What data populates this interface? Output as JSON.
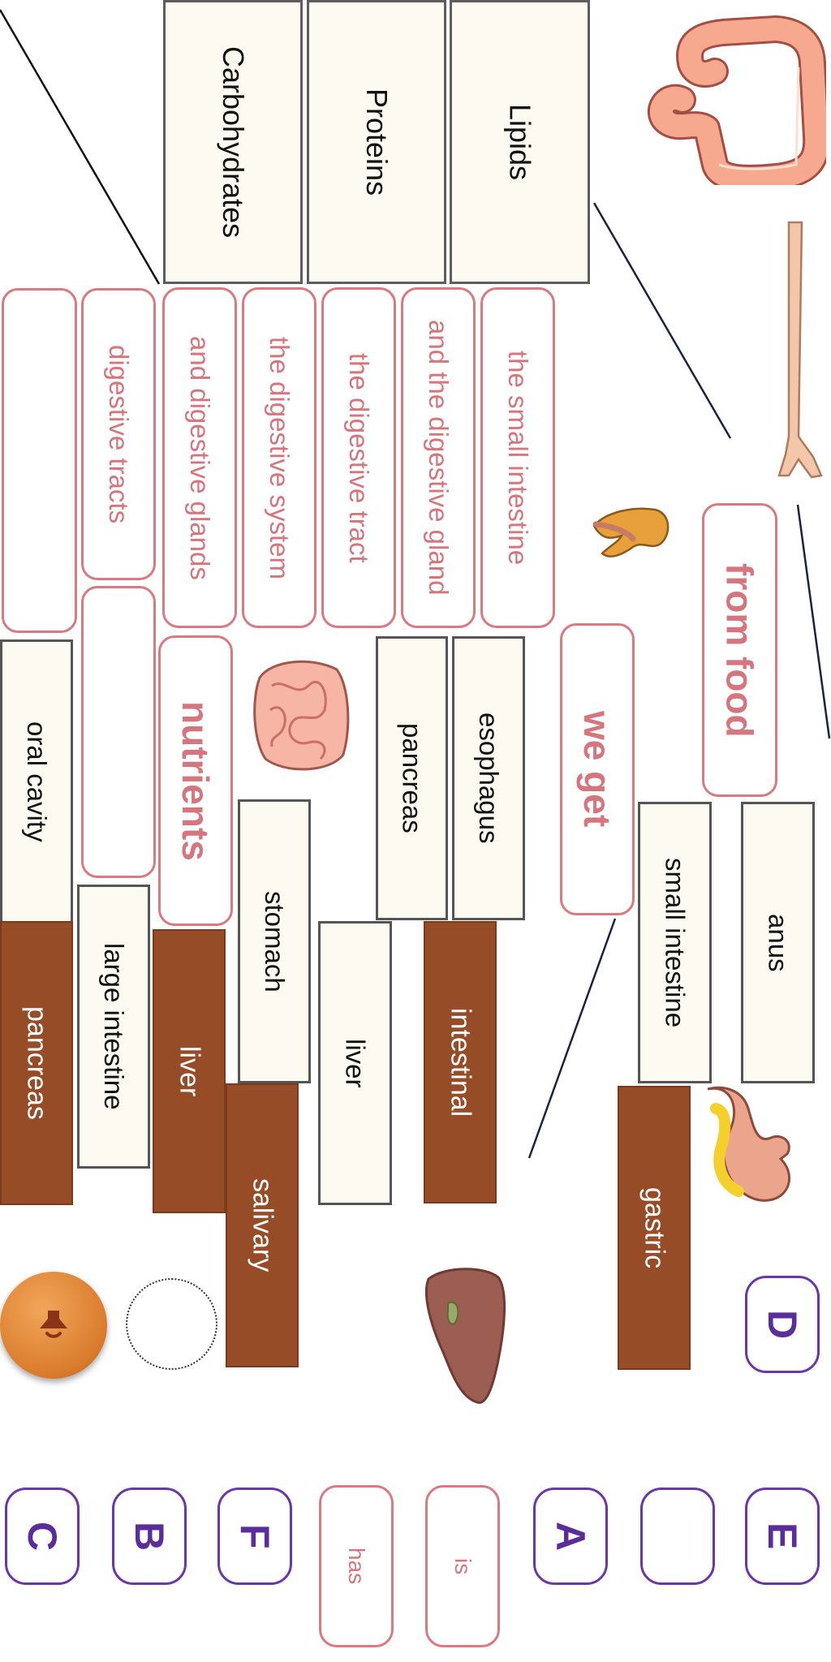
{
  "categories": {
    "carbohydrates": "Carbohydrates",
    "proteins": "Proteins",
    "lipids": "Lipids"
  },
  "phrases": {
    "digestive_tracts": "digestive tracts",
    "and_digestive_glands": "and digestive glands",
    "the_digestive_system": "the digestive system",
    "the_digestive_tract": "the digestive tract",
    "and_the_digestive_gland": "and the digestive gland",
    "the_small_intestine": "the small intestine",
    "from_food": "from food",
    "we_get": "we get",
    "nutrients": "nutrients",
    "has": "has",
    "is": "is"
  },
  "organ_labels": {
    "oral_cavity": "oral cavity",
    "pancreas": "pancreas",
    "esophagus": "esophagus",
    "small_intestine": "small intestine",
    "anus": "anus",
    "stomach": "stomach",
    "liver": "liver",
    "large_intestine": "large intestine"
  },
  "gland_labels": {
    "pancreas": "pancreas",
    "liver": "liver",
    "salivary": "salivary",
    "intestinal": "intestinal",
    "gastric": "gastric"
  },
  "letters": {
    "d": "D",
    "e": "E",
    "a": "A",
    "f": "F",
    "b": "B",
    "c": "C"
  },
  "icons": {
    "sound": "speaker-icon"
  },
  "colors": {
    "phrase_text": "#d5757d",
    "letter_text": "#5b2d9a",
    "gland_fill": "#974c28"
  }
}
